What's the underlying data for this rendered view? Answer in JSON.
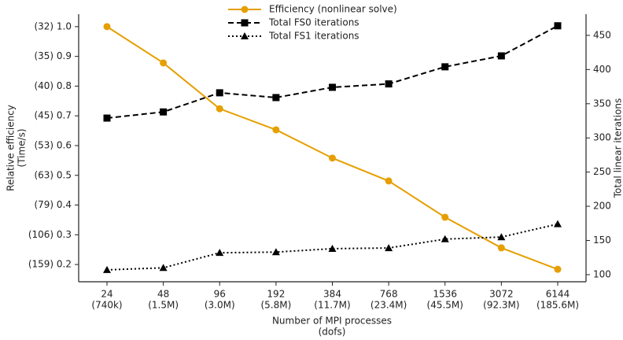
{
  "chart_data": {
    "type": "line",
    "categories": [
      "24",
      "48",
      "96",
      "192",
      "384",
      "768",
      "1536",
      "3072",
      "6144"
    ],
    "category_sublabels": [
      "(740k)",
      "(1.5M)",
      "(3.0M)",
      "(5.8M)",
      "(11.7M)",
      "(23.4M)",
      "(45.5M)",
      "(92.3M)",
      "(185.6M)"
    ],
    "xlabel": [
      "Number of MPI processes",
      "(dofs)"
    ],
    "ylabel": [
      "Relative efficiency",
      "(Time/s)"
    ],
    "y2label": "Total linear iterations",
    "ylim": [
      0.142,
      1.042
    ],
    "yticks": [
      {
        "value": 0.2,
        "label": "(159) 0.2"
      },
      {
        "value": 0.3,
        "label": "(106) 0.3"
      },
      {
        "value": 0.4,
        "label": "(79) 0.4"
      },
      {
        "value": 0.5,
        "label": "(63) 0.5"
      },
      {
        "value": 0.6,
        "label": "(53) 0.6"
      },
      {
        "value": 0.7,
        "label": "(45) 0.7"
      },
      {
        "value": 0.8,
        "label": "(40) 0.8"
      },
      {
        "value": 0.9,
        "label": "(35) 0.9"
      },
      {
        "value": 1.0,
        "label": "(32) 1.0"
      }
    ],
    "y2lim": [
      89.6,
      481
    ],
    "y2ticks": [
      100,
      150,
      200,
      250,
      300,
      350,
      400,
      450
    ],
    "legend": "upper center",
    "series": [
      {
        "name": "Efficiency (nonlinear solve)",
        "color": "#e69f00",
        "marker": "circle",
        "linestyle": "solid",
        "axis": "y",
        "values": [
          1.0,
          0.878,
          0.724,
          0.653,
          0.558,
          0.481,
          0.359,
          0.256,
          0.184
        ]
      },
      {
        "name": "Total FS0 iterations",
        "color": "#000000",
        "marker": "square",
        "linestyle": "dashed",
        "axis": "y2",
        "values": [
          329,
          338,
          366,
          359,
          374,
          379,
          404,
          420,
          464
        ]
      },
      {
        "name": "Total FS1 iterations",
        "color": "#000000",
        "marker": "triangle",
        "linestyle": "dotted",
        "axis": "y2",
        "values": [
          107,
          110,
          132,
          133,
          138,
          139,
          152,
          155,
          174
        ]
      }
    ]
  }
}
